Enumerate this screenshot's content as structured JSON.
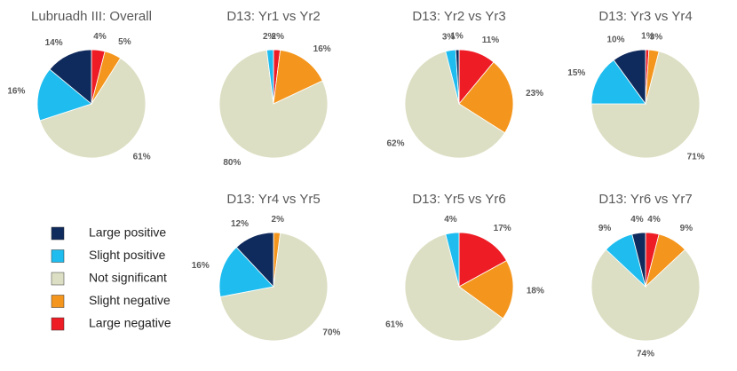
{
  "chart_data": [
    {
      "type": "pie",
      "title": "Lubruadh III: Overall",
      "categories": [
        "Large negative",
        "Slight negative",
        "Not significant",
        "Slight positive",
        "Large positive"
      ],
      "values": [
        4,
        5,
        61,
        16,
        14
      ],
      "value_labels": [
        "4%",
        "5%",
        "61%",
        "16%",
        "14%"
      ],
      "colors": [
        "#ee1c25",
        "#f4961e",
        "#dddfc4",
        "#1fbdef",
        "#0f2a5c"
      ]
    },
    {
      "type": "pie",
      "title": "D13: Yr1 vs Yr2",
      "categories": [
        "Large negative",
        "Slight negative",
        "Not significant",
        "Slight positive"
      ],
      "values": [
        2,
        16,
        80,
        2
      ],
      "value_labels": [
        "2%",
        "16%",
        "80%",
        "2%"
      ],
      "colors": [
        "#ee1c25",
        "#f4961e",
        "#dddfc4",
        "#1fbdef"
      ]
    },
    {
      "type": "pie",
      "title": "D13: Yr2 vs Yr3",
      "categories": [
        "Large negative",
        "Slight negative",
        "Not significant",
        "Slight positive",
        "Large positive"
      ],
      "values": [
        11,
        23,
        62,
        3,
        1
      ],
      "value_labels": [
        "11%",
        "23%",
        "62%",
        "3%",
        "1%"
      ],
      "colors": [
        "#ee1c25",
        "#f4961e",
        "#dddfc4",
        "#1fbdef",
        "#0f2a5c"
      ]
    },
    {
      "type": "pie",
      "title": "D13: Yr3 vs Yr4",
      "categories": [
        "Large negative",
        "Slight negative",
        "Not significant",
        "Slight positive",
        "Large positive"
      ],
      "values": [
        1,
        3,
        71,
        15,
        10
      ],
      "value_labels": [
        "1%",
        "3%",
        "71%",
        "15%",
        "10%"
      ],
      "colors": [
        "#ee1c25",
        "#f4961e",
        "#dddfc4",
        "#1fbdef",
        "#0f2a5c"
      ]
    },
    {
      "type": "pie",
      "title": "D13: Yr4 vs Yr5",
      "categories": [
        "Slight negative",
        "Not significant",
        "Slight positive",
        "Large positive"
      ],
      "values": [
        2,
        70,
        16,
        12
      ],
      "value_labels": [
        "2%",
        "70%",
        "16%",
        "12%"
      ],
      "colors": [
        "#f4961e",
        "#dddfc4",
        "#1fbdef",
        "#0f2a5c"
      ]
    },
    {
      "type": "pie",
      "title": "D13: Yr5 vs Yr6",
      "categories": [
        "Large negative",
        "Slight negative",
        "Not significant",
        "Slight positive"
      ],
      "values": [
        17,
        18,
        61,
        4
      ],
      "value_labels": [
        "17%",
        "18%",
        "61%",
        "4%"
      ],
      "colors": [
        "#ee1c25",
        "#f4961e",
        "#dddfc4",
        "#1fbdef"
      ]
    },
    {
      "type": "pie",
      "title": "D13: Yr6 vs Yr7",
      "categories": [
        "Large negative",
        "Slight negative",
        "Not significant",
        "Slight positive",
        "Large positive"
      ],
      "values": [
        4,
        9,
        74,
        9,
        4
      ],
      "value_labels": [
        "4%",
        "9%",
        "74%",
        "9%",
        "4%"
      ],
      "colors": [
        "#ee1c25",
        "#f4961e",
        "#dddfc4",
        "#1fbdef",
        "#0f2a5c"
      ]
    }
  ],
  "legend": {
    "labels": [
      "Large positive",
      "Slight positive",
      "Not significant",
      "Slight negative",
      "Large negative"
    ],
    "colors": [
      "#0f2a5c",
      "#1fbdef",
      "#dddfc4",
      "#f4961e",
      "#ee1c25"
    ]
  }
}
